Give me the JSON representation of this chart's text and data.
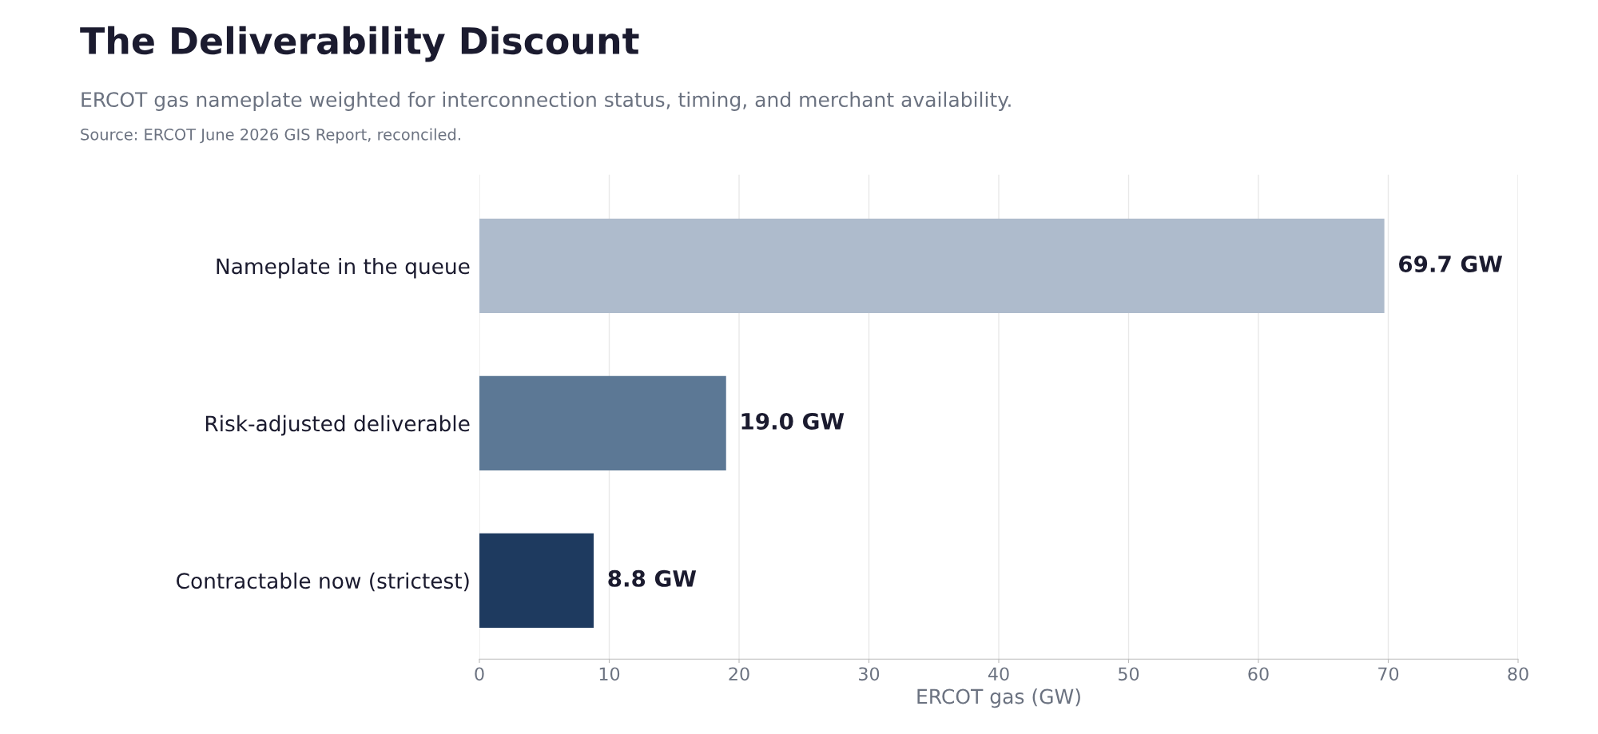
{
  "chart_data": {
    "type": "bar",
    "orientation": "horizontal",
    "title": "The Deliverability Discount",
    "subtitle": "ERCOT gas nameplate weighted for interconnection status, timing, and merchant availability.",
    "annotations": [
      "Source: ERCOT June 2026 GIS Report, reconciled."
    ],
    "categories": [
      "Nameplate in the queue",
      "Risk-adjusted deliverable",
      "Contractable now (strictest)"
    ],
    "values": [
      69.7,
      19.0,
      8.8
    ],
    "colors": [
      "#aebbcc",
      "#5c7895",
      "#1e3a5f"
    ],
    "value_labels": [
      "69.7 GW",
      "19.0 GW",
      "8.8 GW"
    ],
    "xlabel": "ERCOT gas (GW)",
    "xlim": [
      0,
      80
    ],
    "xticks": [
      0,
      10,
      20,
      30,
      40,
      50,
      60,
      70,
      80
    ],
    "grid": "x",
    "legend": false
  }
}
